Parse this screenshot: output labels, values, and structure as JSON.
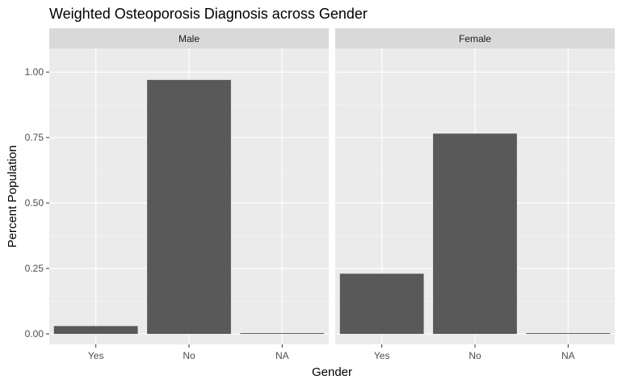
{
  "colors": {
    "panel_background": "#EBEBEB",
    "strip_background": "#D9D9D9",
    "grid_major": "#FFFFFF",
    "grid_minor": "#F2F2F2",
    "bar_fill": "#595959",
    "tick_mark": "#333333",
    "tick_text": "#4D4D4D"
  },
  "chart_data": {
    "type": "bar",
    "title": "Weighted Osteoporosis Diagnosis across Gender",
    "xlabel": "Gender",
    "ylabel": "Percent Population",
    "categories": [
      "Yes",
      "No",
      "NA"
    ],
    "ylim": [
      -0.04,
      1.09
    ],
    "yticks": [
      0.0,
      0.25,
      0.5,
      0.75,
      1.0
    ],
    "ytick_labels": [
      "0.00",
      "0.25",
      "0.50",
      "0.75",
      "1.00"
    ],
    "grid": true,
    "legend": "none",
    "facets": [
      {
        "label": "Male",
        "values": [
          0.03,
          0.97,
          0.003
        ]
      },
      {
        "label": "Female",
        "values": [
          0.23,
          0.765,
          0.003
        ]
      }
    ]
  }
}
